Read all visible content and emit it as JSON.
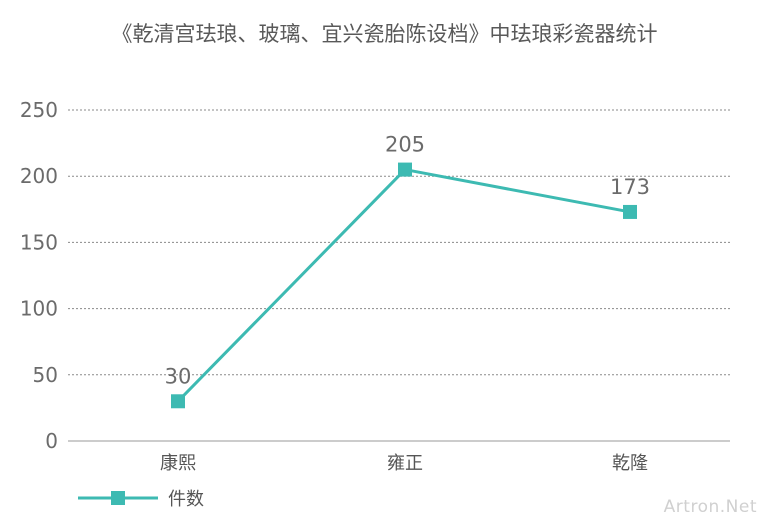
{
  "chart_data": {
    "type": "line",
    "title": "《乾清宫珐琅、玻璃、宜兴瓷胎陈设档》中珐琅彩瓷器统计",
    "categories": [
      "康熙",
      "雍正",
      "乾隆"
    ],
    "series": [
      {
        "name": "件数",
        "values": [
          30,
          205,
          173
        ],
        "color": "#3dbab2"
      }
    ],
    "ylim": [
      0,
      250
    ],
    "yticks": [
      0,
      50,
      100,
      150,
      200,
      250
    ],
    "grid": true,
    "legend": "bottom-left",
    "xlabel": "",
    "ylabel": ""
  },
  "watermark": "Artron.Net"
}
